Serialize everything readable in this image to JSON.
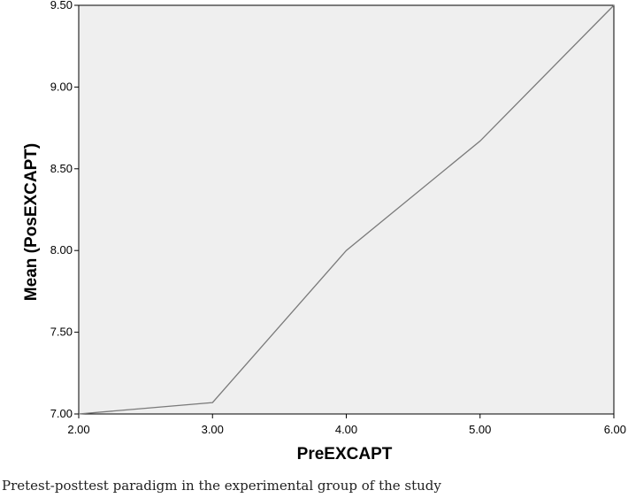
{
  "chart_data": {
    "type": "line",
    "x": [
      2.0,
      3.0,
      4.0,
      5.0,
      6.0
    ],
    "series": [
      {
        "values": [
          7.0,
          7.07,
          8.0,
          8.67,
          9.5
        ]
      }
    ],
    "xlabel": "PreEXCAPT",
    "ylabel": "Mean (PosEXCAPT)",
    "xlim": [
      2.0,
      6.0
    ],
    "ylim": [
      7.0,
      9.5
    ],
    "x_ticks": [
      "2.00",
      "3.00",
      "4.00",
      "5.00",
      "6.00"
    ],
    "y_ticks": [
      "7.00",
      "7.50",
      "8.00",
      "8.50",
      "9.00",
      "9.50"
    ],
    "grid": false,
    "colors": {
      "plot_background": "#efefef",
      "line": "#7a7a7a",
      "axis": "#000000"
    }
  },
  "caption": "Pretest-posttest paradigm in the experimental group of the study"
}
